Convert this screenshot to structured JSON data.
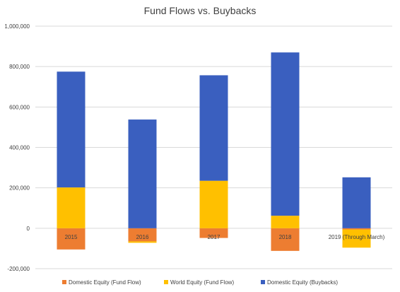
{
  "chart_data": {
    "type": "bar",
    "stacked": true,
    "title": "Fund Flows vs. Buybacks",
    "xlabel": "",
    "ylabel": "",
    "ylim": [
      -200000,
      1000000
    ],
    "yticks": [
      -200000,
      0,
      200000,
      400000,
      600000,
      800000,
      1000000
    ],
    "ytick_labels": [
      "-200,000",
      "0",
      "200,000",
      "400,000",
      "600,000",
      "800,000",
      "1,000,000"
    ],
    "grid": true,
    "legend_position": "bottom",
    "categories": [
      "2015",
      "2016",
      "2017",
      "2018",
      "2019  (Through March)"
    ],
    "series": [
      {
        "name": "Domestic Equity (Fund Flow)",
        "color": "#ED7D31",
        "values": [
          -105000,
          -65000,
          -48000,
          -112000,
          -6000
        ]
      },
      {
        "name": "World Equity (Fund Flow)",
        "color": "#FFC000",
        "values": [
          202000,
          -7000,
          235000,
          62000,
          -90000
        ]
      },
      {
        "name": "Domestic Equity (Buybacks)",
        "color": "#3A5FBF",
        "values": [
          573000,
          538000,
          522000,
          808000,
          252000
        ]
      }
    ]
  }
}
